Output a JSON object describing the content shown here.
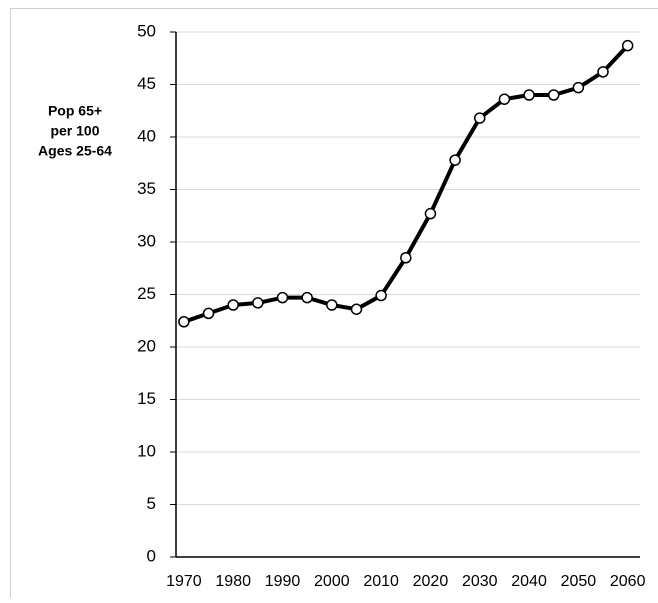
{
  "chart_data": {
    "type": "line",
    "ylabel": [
      "Pop 65+",
      "per 100",
      "Ages 25-64"
    ],
    "x": [
      1970,
      1975,
      1980,
      1985,
      1990,
      1995,
      2000,
      2005,
      2010,
      2015,
      2020,
      2025,
      2030,
      2035,
      2040,
      2045,
      2050,
      2055,
      2060
    ],
    "series": [
      {
        "color": "#000000",
        "values": [
          22.4,
          23.2,
          24.0,
          24.2,
          24.7,
          24.7,
          24.0,
          23.6,
          24.9,
          28.5,
          32.7,
          37.8,
          41.8,
          43.6,
          44.0,
          44.0,
          44.7,
          46.2,
          48.7
        ]
      }
    ],
    "xlim": [
      1968.4,
      2062.5
    ],
    "xticks": [
      1970,
      1980,
      1990,
      2000,
      2010,
      2020,
      2030,
      2040,
      2050,
      2060
    ],
    "ylim": [
      0,
      50
    ],
    "yticks": [
      0,
      5,
      10,
      15,
      20,
      25,
      30,
      35,
      40,
      45,
      50
    ],
    "grid": true,
    "markers": true
  }
}
